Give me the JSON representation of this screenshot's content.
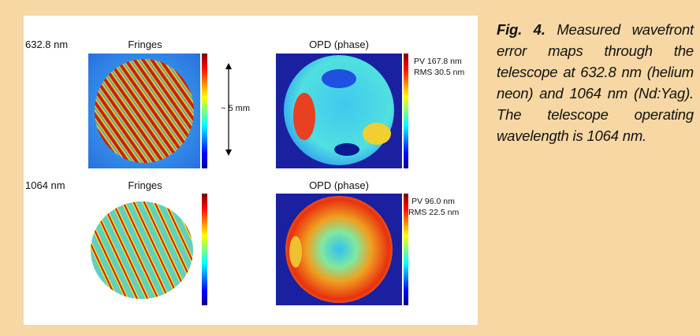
{
  "figure": {
    "rows": [
      {
        "wavelength": "632.8 nm",
        "fringes_title": "Fringes",
        "opd_title": "OPD (phase)",
        "pv": "PV 167.8 nm",
        "rms": "RMS 30.5 nm"
      },
      {
        "wavelength": "1064 nm",
        "fringes_title": "Fringes",
        "opd_title": "OPD (phase)",
        "pv": "PV 96.0 nm",
        "rms": "RMS 22.5 nm"
      }
    ],
    "scale_annotation": "~ 5 mm"
  },
  "caption": {
    "label": "Fig. 4.",
    "text": "Measured wavefront error maps through the telescope at 632.8 nm (helium neon) and 1064 nm (Nd:Yag). The telescope operating wavelength is 1064 nm."
  }
}
